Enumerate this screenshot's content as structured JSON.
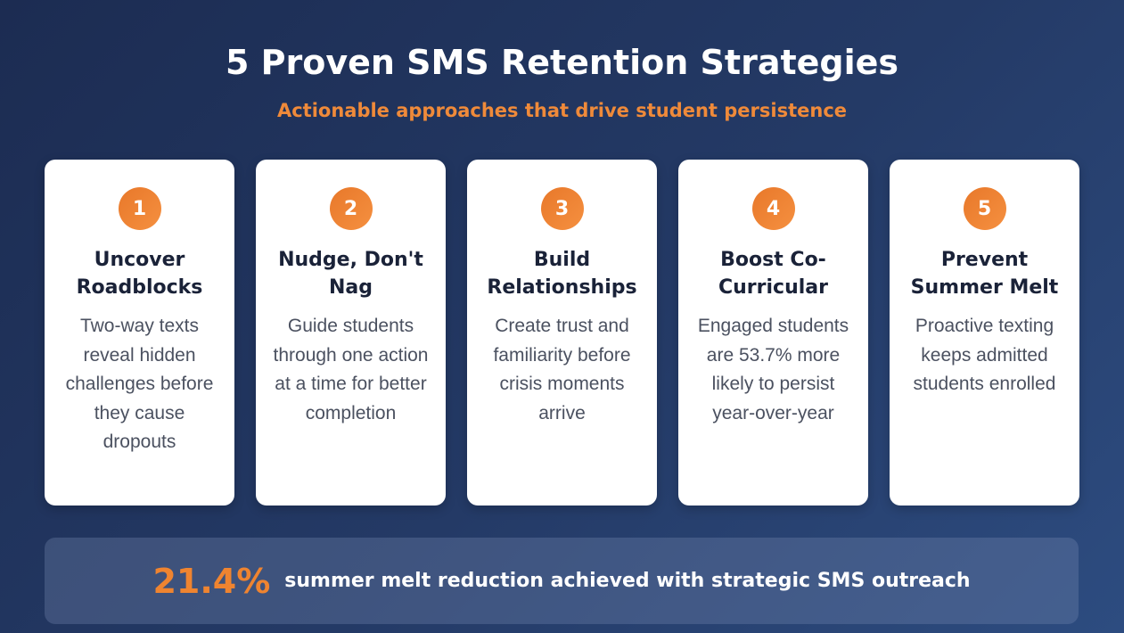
{
  "header": {
    "title": "5 Proven SMS Retention Strategies",
    "subtitle": "Actionable approaches that drive student persistence"
  },
  "cards": [
    {
      "number": "1",
      "title": "Uncover Roadblocks",
      "body": "Two-way texts reveal hidden challenges before they cause dropouts"
    },
    {
      "number": "2",
      "title": "Nudge, Don't Nag",
      "body": "Guide students through one action at a time for better completion"
    },
    {
      "number": "3",
      "title": "Build Relationships",
      "body": "Create trust and familiarity before crisis moments arrive"
    },
    {
      "number": "4",
      "title": "Boost Co-Curricular",
      "body": "Engaged students are 53.7% more likely to persist year-over-year"
    },
    {
      "number": "5",
      "title": "Prevent Summer Melt",
      "body": "Proactive texting keeps admitted students enrolled"
    }
  ],
  "banner": {
    "stat": "21.4%",
    "text": "summer melt reduction achieved with strategic SMS outreach"
  },
  "colors": {
    "accent": "#ef8a3a",
    "background": "#1e2f58"
  }
}
